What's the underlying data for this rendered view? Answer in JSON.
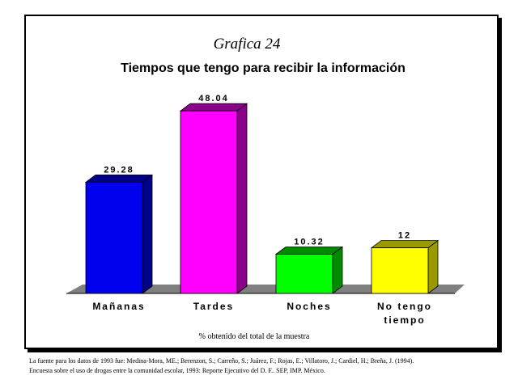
{
  "chart_data": {
    "type": "bar",
    "figure_label": "Grafica 24",
    "title": "Tiempos que tengo para recibir la información",
    "categories": [
      "Mañanas",
      "Tardes",
      "Noches",
      "No tengo tiempo"
    ],
    "category_label_lines": [
      [
        "Mañanas"
      ],
      [
        "Tardes"
      ],
      [
        "Noches"
      ],
      [
        "No tengo",
        "tiempo"
      ]
    ],
    "values": [
      29.28,
      48.04,
      10.32,
      12
    ],
    "value_labels": [
      "29.28",
      "48.04",
      "10.32",
      "12"
    ],
    "bar_colors": [
      "#0000ee",
      "#ff00ff",
      "#00ff00",
      "#ffff00"
    ],
    "bar_side_colors": [
      "#00008b",
      "#8b008b",
      "#008b00",
      "#9a9a00"
    ],
    "floor_color": "#808080",
    "xlabel": "% obtenido del total de la muestra",
    "ylabel": "",
    "ylim": [
      0,
      50
    ],
    "grid": false,
    "legend": "none",
    "style": "3d"
  },
  "source_note": [
    "La fuente para los datos de 1993 fue: Medina-Mora, ME.; Berenzon, S.; Carreño, S.; Juárez, F.; Rojas, E.; Villatoro, J.; Cardiel, H.; Breña, J. (1994).",
    "Encuesta sobre el uso de drogas entre la comunidad escolar, 1993: Reporte Ejecutivo del D. F.. SEP, IMP. México."
  ]
}
